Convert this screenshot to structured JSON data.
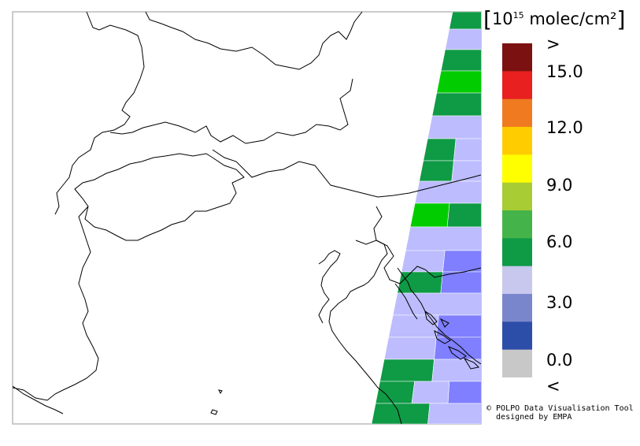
{
  "units": {
    "bracket_left": "[",
    "base": "10",
    "exponent": "15",
    "rest": " molec/cm²",
    "bracket_right": "]"
  },
  "colorbar": {
    "labels": [
      ">",
      "15.0",
      "12.0",
      "9.0",
      "6.0",
      "3.0",
      "0.0",
      "<"
    ],
    "bins": [
      {
        "color": "#7b1111"
      },
      {
        "color": "#e82020"
      },
      {
        "color": "#f07a20"
      },
      {
        "color": "#ffcc00"
      },
      {
        "color": "#ffff00"
      },
      {
        "color": "#a8cc33"
      },
      {
        "color": "#44b44a"
      },
      {
        "color": "#0f9a45"
      },
      {
        "color": "#c8c8ee"
      },
      {
        "color": "#7a86cc"
      },
      {
        "color": "#2c4ea8"
      },
      {
        "color": "#c8c8c8"
      }
    ]
  },
  "colors": {
    "dark_green": "#0f9a45",
    "bright_green": "#00cc00",
    "lavender": "#bcbcff",
    "blue": "#7f7fff",
    "coastline": "#000000",
    "frame": "#999999"
  },
  "credit": {
    "line1": "© POLPO Data Visualisation Tool",
    "line2": "  designed by EMPA"
  }
}
